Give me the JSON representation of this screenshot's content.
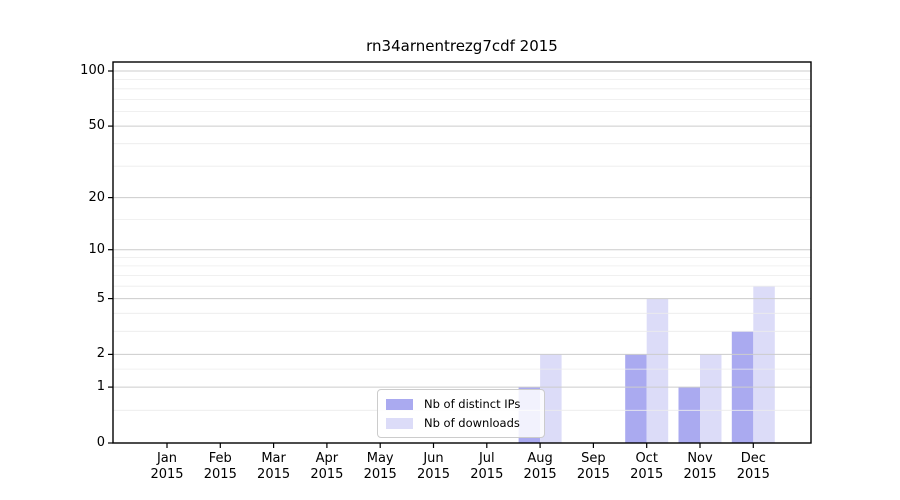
{
  "chart_data": {
    "type": "bar",
    "title": "rn34arnentrezg7cdf 2015",
    "year": "2015",
    "categories": [
      "Jan",
      "Feb",
      "Mar",
      "Apr",
      "May",
      "Jun",
      "Jul",
      "Aug",
      "Sep",
      "Oct",
      "Nov",
      "Dec"
    ],
    "series": [
      {
        "name": "Nb of distinct IPs",
        "color": "#aaaaf0",
        "values": [
          0,
          0,
          0,
          0,
          0,
          0,
          0,
          1,
          0,
          2,
          1,
          3
        ]
      },
      {
        "name": "Nb of downloads",
        "color": "#dcdcf8",
        "values": [
          0,
          0,
          0,
          0,
          0,
          0,
          0,
          2,
          0,
          5,
          2,
          6
        ]
      }
    ],
    "yscale": "log1p",
    "ylim": [
      0,
      100
    ],
    "yticks": [
      0,
      1,
      2,
      5,
      10,
      20,
      50,
      100
    ],
    "yticks_minor": [
      0.5,
      1.5,
      3,
      4,
      6,
      7,
      8,
      9,
      15,
      30,
      40,
      60,
      70,
      80,
      90
    ],
    "grid": true,
    "legend_position": "lower center",
    "colors": {
      "axis": "#000000",
      "major_grid": "#cccccc",
      "minor_grid": "#ececec",
      "text": "#000000"
    }
  }
}
